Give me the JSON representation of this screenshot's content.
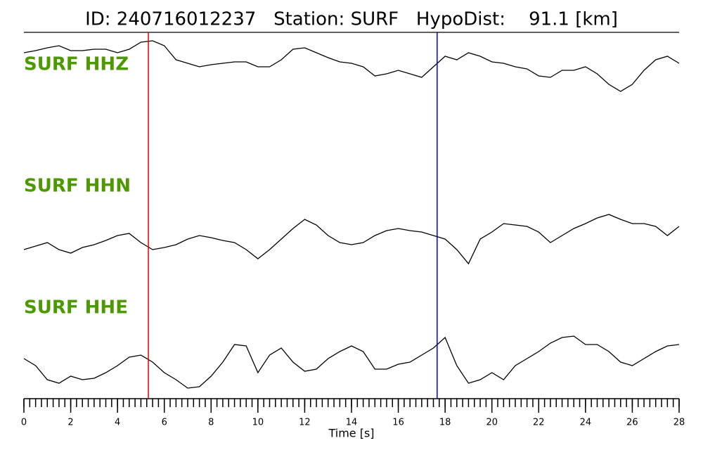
{
  "chart_data": {
    "type": "line",
    "title": "ID: 240716012237   Station: SURF   HypoDist:    91.1 [km]",
    "xlabel": "Time [s]",
    "xlim": [
      0,
      28
    ],
    "xticks": [
      0,
      2,
      4,
      6,
      8,
      10,
      12,
      14,
      16,
      18,
      20,
      22,
      24,
      26,
      28
    ],
    "x": [
      0,
      0.5,
      1,
      1.5,
      2,
      2.5,
      3,
      3.5,
      4,
      4.5,
      5,
      5.5,
      6,
      6.5,
      7,
      7.5,
      8,
      8.5,
      9,
      9.5,
      10,
      10.5,
      11,
      11.5,
      12,
      12.5,
      13,
      13.5,
      14,
      14.5,
      15,
      15.5,
      16,
      16.5,
      17,
      17.5,
      18,
      18.5,
      19,
      19.5,
      20,
      20.5,
      21,
      21.5,
      22,
      22.5,
      23,
      23.5,
      24,
      24.5,
      25,
      25.5,
      26,
      26.5,
      27,
      27.5,
      28
    ],
    "label_color": "#4c9a00",
    "series": [
      {
        "name": "SURF HHZ",
        "color": "#000000",
        "values": [
          20,
          23,
          27,
          30,
          23,
          23,
          25,
          25,
          20,
          25,
          35,
          37,
          30,
          10,
          5,
          0,
          3,
          5,
          7,
          7,
          0,
          0,
          10,
          25,
          27,
          20,
          13,
          7,
          5,
          0,
          -13,
          -10,
          -5,
          -10,
          -15,
          0,
          15,
          10,
          20,
          15,
          7,
          5,
          0,
          -3,
          -13,
          -15,
          -5,
          -5,
          0,
          -10,
          -25,
          -35,
          -25,
          -5,
          10,
          15,
          5
        ]
      },
      {
        "name": "SURF HHN",
        "color": "#000000",
        "values": [
          -10,
          -5,
          0,
          -10,
          -15,
          -7,
          -3,
          3,
          10,
          13,
          0,
          -10,
          -7,
          -3,
          5,
          10,
          7,
          3,
          0,
          -10,
          -23,
          -10,
          5,
          20,
          33,
          25,
          10,
          0,
          -3,
          0,
          10,
          17,
          20,
          17,
          15,
          10,
          5,
          -10,
          -30,
          5,
          15,
          27,
          25,
          23,
          15,
          0,
          10,
          20,
          27,
          35,
          40,
          33,
          27,
          27,
          23,
          10,
          23
        ]
      },
      {
        "name": "SURF HHE",
        "color": "#000000",
        "values": [
          5,
          -5,
          -25,
          -30,
          -20,
          -25,
          -23,
          -15,
          -5,
          7,
          10,
          0,
          -15,
          -25,
          -37,
          -35,
          -20,
          0,
          25,
          23,
          -15,
          10,
          20,
          0,
          -13,
          -10,
          5,
          15,
          23,
          15,
          -10,
          -10,
          -3,
          0,
          10,
          20,
          35,
          -5,
          -30,
          -25,
          -15,
          -25,
          -5,
          5,
          15,
          27,
          35,
          37,
          25,
          25,
          15,
          0,
          -5,
          5,
          15,
          23,
          25
        ]
      }
    ],
    "picks": [
      {
        "x": 5.32,
        "color": "#e00000"
      },
      {
        "x": 17.66,
        "color": "#0000e0"
      }
    ]
  }
}
